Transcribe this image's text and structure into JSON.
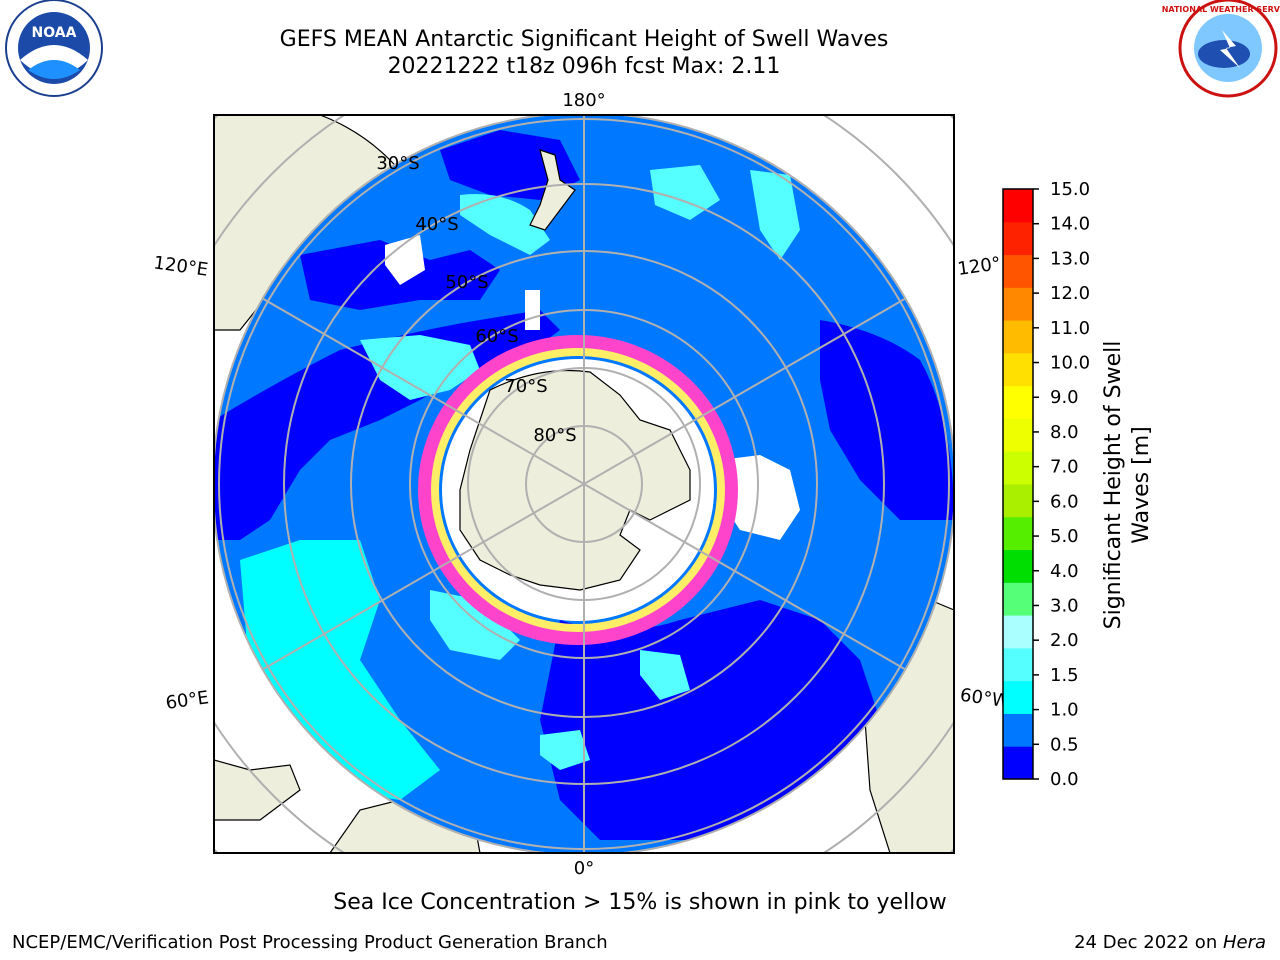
{
  "header": {
    "title_line1": "GEFS MEAN Antarctic Significant Height of Swell Waves",
    "title_line2": "20221222 t18z 096h fcst   Max: 2.11"
  },
  "logos": {
    "noaa_text": "NOAA",
    "nws_text": "NATIONAL WEATHER SERVICE"
  },
  "map": {
    "meridian_labels": [
      "180°",
      "120°E",
      "120°",
      "60°E",
      "60°W",
      "0°"
    ],
    "latitude_labels": [
      "30°S",
      "40°S",
      "50°S",
      "60°S",
      "70°S",
      "80°S"
    ],
    "colors": {
      "ocean_dark": "#0000ff",
      "ocean_mid": "#0078ff",
      "swell_light": "#00ffff",
      "swell_pale": "#55ffff",
      "land": "#eeeedd",
      "ice_pink": "#ff44cc",
      "ice_yellow": "#ffee66",
      "grid": "#b0b0b0"
    }
  },
  "colorbar": {
    "title": "Significant Height of Swell Waves [m]",
    "ticks": [
      "15.0",
      "14.0",
      "13.0",
      "12.0",
      "11.0",
      "10.0",
      "9.0",
      "8.0",
      "7.0",
      "6.0",
      "5.0",
      "4.0",
      "3.0",
      "2.0",
      "1.5",
      "1.0",
      "0.5",
      "0.0"
    ],
    "colors": [
      "#0000ff",
      "#0078ff",
      "#00ffff",
      "#55ffff",
      "#aaffff",
      "#55ff77",
      "#00dd00",
      "#55ee00",
      "#aaee00",
      "#ccff00",
      "#eeff00",
      "#ffff00",
      "#ffe000",
      "#ffbb00",
      "#ff8800",
      "#ff5500",
      "#ff2200",
      "#ff0000"
    ]
  },
  "footer": {
    "note": "Sea Ice Concentration > 15% is shown in pink to yellow",
    "credit": "NCEP/EMC/Verification Post Processing Product Generation Branch",
    "date": "24 Dec 2022 on ",
    "machine": "Hera"
  }
}
